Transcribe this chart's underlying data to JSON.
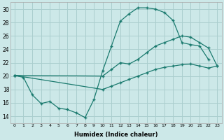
{
  "xlabel": "Humidex (Indice chaleur)",
  "bg_color": "#cce8e8",
  "grid_color": "#aacece",
  "line_color": "#1a7a6e",
  "marker": "+",
  "xlim": [
    -0.5,
    23.5
  ],
  "ylim": [
    13,
    31
  ],
  "xticks": [
    0,
    1,
    2,
    3,
    4,
    5,
    6,
    7,
    8,
    9,
    10,
    11,
    12,
    13,
    14,
    15,
    16,
    17,
    18,
    19,
    20,
    21,
    22,
    23
  ],
  "yticks": [
    14,
    16,
    18,
    20,
    22,
    24,
    26,
    28,
    30
  ],
  "line1_x": [
    0,
    1,
    2,
    3,
    4,
    5,
    6,
    7,
    8,
    9,
    10,
    11,
    12,
    13,
    14,
    15,
    16,
    17,
    18,
    19,
    20,
    21,
    22
  ],
  "line1_y": [
    20.1,
    19.8,
    17.2,
    15.9,
    16.2,
    15.2,
    15.0,
    14.5,
    13.8,
    16.5,
    20.8,
    24.5,
    28.2,
    29.3,
    30.2,
    30.2,
    30.0,
    29.5,
    28.3,
    25.0,
    24.7,
    24.5,
    22.5
  ],
  "line2_x": [
    0,
    10,
    11,
    12,
    13,
    14,
    15,
    16,
    17,
    18,
    19,
    20,
    21,
    22,
    23
  ],
  "line2_y": [
    20.1,
    20.0,
    21.0,
    22.0,
    21.8,
    22.5,
    23.5,
    24.5,
    25.0,
    25.5,
    26.0,
    25.8,
    25.0,
    24.2,
    21.5
  ],
  "line3_x": [
    0,
    10,
    11,
    12,
    13,
    14,
    15,
    16,
    17,
    18,
    19,
    20,
    21,
    22,
    23
  ],
  "line3_y": [
    20.1,
    18.0,
    18.5,
    19.0,
    19.5,
    20.0,
    20.5,
    21.0,
    21.3,
    21.5,
    21.7,
    21.8,
    21.5,
    21.2,
    21.5
  ]
}
